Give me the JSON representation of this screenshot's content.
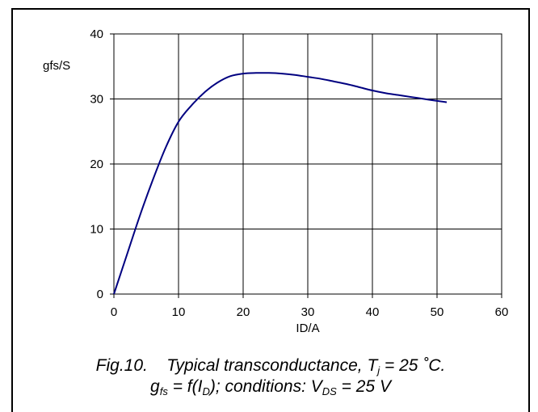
{
  "chart_data": {
    "type": "line",
    "xlabel": "ID/A",
    "ylabel": "gfs/S",
    "xlim": [
      0,
      60
    ],
    "ylim": [
      0,
      40
    ],
    "x_ticks": [
      "0",
      "10",
      "20",
      "30",
      "40",
      "50",
      "60"
    ],
    "y_ticks": [
      "0",
      "10",
      "20",
      "30",
      "40"
    ],
    "grid": true,
    "series": [
      {
        "color": "#000080",
        "x": [
          0,
          2,
          4,
          6,
          8,
          10,
          12,
          14,
          16,
          18,
          20,
          22,
          24,
          26,
          28,
          30,
          32,
          34,
          36,
          38,
          40,
          42,
          44,
          46,
          48,
          50,
          51.5
        ],
        "y": [
          0,
          6,
          12,
          17.5,
          22.5,
          26.5,
          29,
          31,
          32.5,
          33.5,
          33.9,
          34,
          34,
          33.9,
          33.7,
          33.4,
          33.1,
          32.7,
          32.3,
          31.8,
          31.3,
          30.9,
          30.6,
          30.3,
          30.0,
          29.7,
          29.5
        ]
      }
    ]
  },
  "caption": {
    "fig": "Fig.10.",
    "title_prefix": "Typical transconductance,",
    "t_symbol": "T",
    "t_sub": "j",
    "t_value": "= 25 ˚C.",
    "g_symbol": "g",
    "g_sub": "fs",
    "eq": "= f(I",
    "i_sub": "D",
    "cond": "); conditions: V",
    "v_sub": "DS",
    "v_value": "= 25 V"
  }
}
